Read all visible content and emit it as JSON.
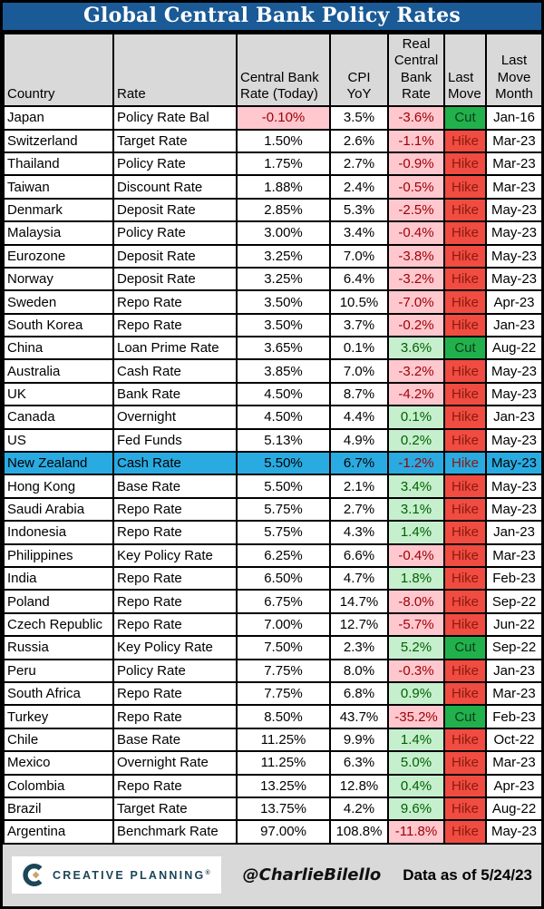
{
  "title": "Global Central Bank Policy Rates",
  "chart_data": {
    "type": "table",
    "title": "Global Central Bank Policy Rates",
    "columns": [
      [
        "Country"
      ],
      [
        "Rate"
      ],
      [
        "Central Bank",
        "Rate (Today)"
      ],
      [
        "CPI",
        "YoY"
      ],
      [
        "Real",
        "Central",
        "Bank",
        "Rate"
      ],
      [
        "Last",
        "Move"
      ],
      [
        "Last",
        "Move",
        "Month"
      ]
    ],
    "highlight_row": "New Zealand",
    "rows": [
      {
        "country": "Japan",
        "rate": "Policy Rate Bal",
        "cbr": "-0.10%",
        "cpi": "3.5%",
        "real": "-3.6%",
        "move": "Cut",
        "month": "Jan-16"
      },
      {
        "country": "Switzerland",
        "rate": "Target Rate",
        "cbr": "1.50%",
        "cpi": "2.6%",
        "real": "-1.1%",
        "move": "Hike",
        "month": "Mar-23"
      },
      {
        "country": "Thailand",
        "rate": "Policy Rate",
        "cbr": "1.75%",
        "cpi": "2.7%",
        "real": "-0.9%",
        "move": "Hike",
        "month": "Mar-23"
      },
      {
        "country": "Taiwan",
        "rate": "Discount Rate",
        "cbr": "1.88%",
        "cpi": "2.4%",
        "real": "-0.5%",
        "move": "Hike",
        "month": "Mar-23"
      },
      {
        "country": "Denmark",
        "rate": "Deposit Rate",
        "cbr": "2.85%",
        "cpi": "5.3%",
        "real": "-2.5%",
        "move": "Hike",
        "month": "May-23"
      },
      {
        "country": "Malaysia",
        "rate": "Policy Rate",
        "cbr": "3.00%",
        "cpi": "3.4%",
        "real": "-0.4%",
        "move": "Hike",
        "month": "May-23"
      },
      {
        "country": "Eurozone",
        "rate": "Deposit Rate",
        "cbr": "3.25%",
        "cpi": "7.0%",
        "real": "-3.8%",
        "move": "Hike",
        "month": "May-23"
      },
      {
        "country": "Norway",
        "rate": "Deposit Rate",
        "cbr": "3.25%",
        "cpi": "6.4%",
        "real": "-3.2%",
        "move": "Hike",
        "month": "May-23"
      },
      {
        "country": "Sweden",
        "rate": "Repo Rate",
        "cbr": "3.50%",
        "cpi": "10.5%",
        "real": "-7.0%",
        "move": "Hike",
        "month": "Apr-23"
      },
      {
        "country": "South Korea",
        "rate": "Repo Rate",
        "cbr": "3.50%",
        "cpi": "3.7%",
        "real": "-0.2%",
        "move": "Hike",
        "month": "Jan-23"
      },
      {
        "country": "China",
        "rate": "Loan Prime Rate",
        "cbr": "3.65%",
        "cpi": "0.1%",
        "real": "3.6%",
        "move": "Cut",
        "month": "Aug-22"
      },
      {
        "country": "Australia",
        "rate": "Cash Rate",
        "cbr": "3.85%",
        "cpi": "7.0%",
        "real": "-3.2%",
        "move": "Hike",
        "month": "May-23"
      },
      {
        "country": "UK",
        "rate": "Bank Rate",
        "cbr": "4.50%",
        "cpi": "8.7%",
        "real": "-4.2%",
        "move": "Hike",
        "month": "May-23"
      },
      {
        "country": "Canada",
        "rate": "Overnight",
        "cbr": "4.50%",
        "cpi": "4.4%",
        "real": "0.1%",
        "move": "Hike",
        "month": "Jan-23"
      },
      {
        "country": "US",
        "rate": "Fed Funds",
        "cbr": "5.13%",
        "cpi": "4.9%",
        "real": "0.2%",
        "move": "Hike",
        "month": "May-23"
      },
      {
        "country": "New Zealand",
        "rate": "Cash Rate",
        "cbr": "5.50%",
        "cpi": "6.7%",
        "real": "-1.2%",
        "move": "Hike",
        "month": "May-23"
      },
      {
        "country": "Hong Kong",
        "rate": "Base Rate",
        "cbr": "5.50%",
        "cpi": "2.1%",
        "real": "3.4%",
        "move": "Hike",
        "month": "May-23"
      },
      {
        "country": "Saudi Arabia",
        "rate": "Repo Rate",
        "cbr": "5.75%",
        "cpi": "2.7%",
        "real": "3.1%",
        "move": "Hike",
        "month": "May-23"
      },
      {
        "country": "Indonesia",
        "rate": "Repo Rate",
        "cbr": "5.75%",
        "cpi": "4.3%",
        "real": "1.4%",
        "move": "Hike",
        "month": "Jan-23"
      },
      {
        "country": "Philippines",
        "rate": "Key Policy Rate",
        "cbr": "6.25%",
        "cpi": "6.6%",
        "real": "-0.4%",
        "move": "Hike",
        "month": "Mar-23"
      },
      {
        "country": "India",
        "rate": "Repo Rate",
        "cbr": "6.50%",
        "cpi": "4.7%",
        "real": "1.8%",
        "move": "Hike",
        "month": "Feb-23"
      },
      {
        "country": "Poland",
        "rate": "Repo Rate",
        "cbr": "6.75%",
        "cpi": "14.7%",
        "real": "-8.0%",
        "move": "Hike",
        "month": "Sep-22"
      },
      {
        "country": "Czech Republic",
        "rate": "Repo Rate",
        "cbr": "7.00%",
        "cpi": "12.7%",
        "real": "-5.7%",
        "move": "Hike",
        "month": "Jun-22"
      },
      {
        "country": "Russia",
        "rate": "Key Policy Rate",
        "cbr": "7.50%",
        "cpi": "2.3%",
        "real": "5.2%",
        "move": "Cut",
        "month": "Sep-22"
      },
      {
        "country": "Peru",
        "rate": "Policy Rate",
        "cbr": "7.75%",
        "cpi": "8.0%",
        "real": "-0.3%",
        "move": "Hike",
        "month": "Jan-23"
      },
      {
        "country": "South Africa",
        "rate": "Repo Rate",
        "cbr": "7.75%",
        "cpi": "6.8%",
        "real": "0.9%",
        "move": "Hike",
        "month": "Mar-23"
      },
      {
        "country": "Turkey",
        "rate": "Repo Rate",
        "cbr": "8.50%",
        "cpi": "43.7%",
        "real": "-35.2%",
        "move": "Cut",
        "month": "Feb-23"
      },
      {
        "country": "Chile",
        "rate": "Base Rate",
        "cbr": "11.25%",
        "cpi": "9.9%",
        "real": "1.4%",
        "move": "Hike",
        "month": "Oct-22"
      },
      {
        "country": "Mexico",
        "rate": "Overnight Rate",
        "cbr": "11.25%",
        "cpi": "6.3%",
        "real": "5.0%",
        "move": "Hike",
        "month": "Mar-23"
      },
      {
        "country": "Colombia",
        "rate": "Repo Rate",
        "cbr": "13.25%",
        "cpi": "12.8%",
        "real": "0.4%",
        "move": "Hike",
        "month": "Apr-23"
      },
      {
        "country": "Brazil",
        "rate": "Target Rate",
        "cbr": "13.75%",
        "cpi": "4.2%",
        "real": "9.6%",
        "move": "Hike",
        "month": "Aug-22"
      },
      {
        "country": "Argentina",
        "rate": "Benchmark Rate",
        "cbr": "97.00%",
        "cpi": "108.8%",
        "real": "-11.8%",
        "move": "Hike",
        "month": "May-23"
      }
    ]
  },
  "footer": {
    "brand": "CREATIVE PLANNING",
    "trademark": "®",
    "handle": "@CharlieBilello",
    "as_of": "Data as of 5/24/23"
  },
  "colors": {
    "title-bg": "#1A5A96",
    "header-bg": "#D9D9D9",
    "neg-bg": "#FFC7CE",
    "neg-text": "#9C0006",
    "pos-bg": "#C6EFCE",
    "pos-text": "#006100",
    "hike-bg": "#F04C42",
    "hike-text": "#8B1A0E",
    "cut-bg": "#21B14C",
    "cut-text": "#0E3D1C",
    "highlight-bg": "#29ABE2",
    "footer-bg": "#D9D9D9",
    "brand-navy": "#1C4558",
    "brand-gold": "#C9A46B"
  }
}
